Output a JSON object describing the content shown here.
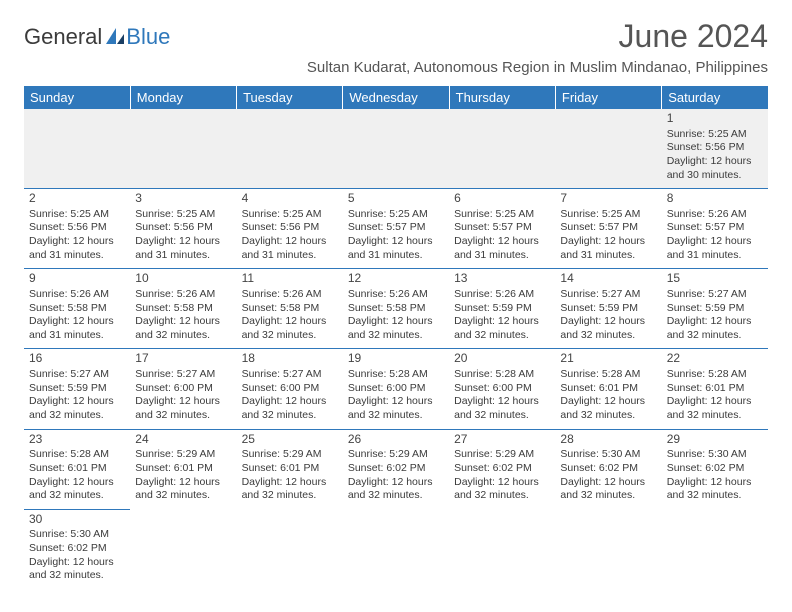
{
  "logo": {
    "text1": "General",
    "text2": "Blue"
  },
  "title": "June 2024",
  "location": "Sultan Kudarat, Autonomous Region in Muslim Mindanao, Philippines",
  "columns": [
    "Sunday",
    "Monday",
    "Tuesday",
    "Wednesday",
    "Thursday",
    "Friday",
    "Saturday"
  ],
  "colors": {
    "header_bg": "#2f78bb",
    "header_text": "#ffffff",
    "cell_border": "#2f78bb",
    "body_text": "#3b3b3b",
    "gray_bg": "#f0f0f0"
  },
  "typography": {
    "title_fontsize": 32,
    "location_fontsize": 15,
    "header_fontsize": 13,
    "cell_fontsize": 10.5,
    "daynum_fontsize": 12
  },
  "weeks": [
    [
      null,
      null,
      null,
      null,
      null,
      null,
      {
        "d": "1",
        "sr": "Sunrise: 5:25 AM",
        "ss": "Sunset: 5:56 PM",
        "dl1": "Daylight: 12 hours",
        "dl2": "and 30 minutes."
      }
    ],
    [
      {
        "d": "2",
        "sr": "Sunrise: 5:25 AM",
        "ss": "Sunset: 5:56 PM",
        "dl1": "Daylight: 12 hours",
        "dl2": "and 31 minutes."
      },
      {
        "d": "3",
        "sr": "Sunrise: 5:25 AM",
        "ss": "Sunset: 5:56 PM",
        "dl1": "Daylight: 12 hours",
        "dl2": "and 31 minutes."
      },
      {
        "d": "4",
        "sr": "Sunrise: 5:25 AM",
        "ss": "Sunset: 5:56 PM",
        "dl1": "Daylight: 12 hours",
        "dl2": "and 31 minutes."
      },
      {
        "d": "5",
        "sr": "Sunrise: 5:25 AM",
        "ss": "Sunset: 5:57 PM",
        "dl1": "Daylight: 12 hours",
        "dl2": "and 31 minutes."
      },
      {
        "d": "6",
        "sr": "Sunrise: 5:25 AM",
        "ss": "Sunset: 5:57 PM",
        "dl1": "Daylight: 12 hours",
        "dl2": "and 31 minutes."
      },
      {
        "d": "7",
        "sr": "Sunrise: 5:25 AM",
        "ss": "Sunset: 5:57 PM",
        "dl1": "Daylight: 12 hours",
        "dl2": "and 31 minutes."
      },
      {
        "d": "8",
        "sr": "Sunrise: 5:26 AM",
        "ss": "Sunset: 5:57 PM",
        "dl1": "Daylight: 12 hours",
        "dl2": "and 31 minutes."
      }
    ],
    [
      {
        "d": "9",
        "sr": "Sunrise: 5:26 AM",
        "ss": "Sunset: 5:58 PM",
        "dl1": "Daylight: 12 hours",
        "dl2": "and 31 minutes."
      },
      {
        "d": "10",
        "sr": "Sunrise: 5:26 AM",
        "ss": "Sunset: 5:58 PM",
        "dl1": "Daylight: 12 hours",
        "dl2": "and 32 minutes."
      },
      {
        "d": "11",
        "sr": "Sunrise: 5:26 AM",
        "ss": "Sunset: 5:58 PM",
        "dl1": "Daylight: 12 hours",
        "dl2": "and 32 minutes."
      },
      {
        "d": "12",
        "sr": "Sunrise: 5:26 AM",
        "ss": "Sunset: 5:58 PM",
        "dl1": "Daylight: 12 hours",
        "dl2": "and 32 minutes."
      },
      {
        "d": "13",
        "sr": "Sunrise: 5:26 AM",
        "ss": "Sunset: 5:59 PM",
        "dl1": "Daylight: 12 hours",
        "dl2": "and 32 minutes."
      },
      {
        "d": "14",
        "sr": "Sunrise: 5:27 AM",
        "ss": "Sunset: 5:59 PM",
        "dl1": "Daylight: 12 hours",
        "dl2": "and 32 minutes."
      },
      {
        "d": "15",
        "sr": "Sunrise: 5:27 AM",
        "ss": "Sunset: 5:59 PM",
        "dl1": "Daylight: 12 hours",
        "dl2": "and 32 minutes."
      }
    ],
    [
      {
        "d": "16",
        "sr": "Sunrise: 5:27 AM",
        "ss": "Sunset: 5:59 PM",
        "dl1": "Daylight: 12 hours",
        "dl2": "and 32 minutes."
      },
      {
        "d": "17",
        "sr": "Sunrise: 5:27 AM",
        "ss": "Sunset: 6:00 PM",
        "dl1": "Daylight: 12 hours",
        "dl2": "and 32 minutes."
      },
      {
        "d": "18",
        "sr": "Sunrise: 5:27 AM",
        "ss": "Sunset: 6:00 PM",
        "dl1": "Daylight: 12 hours",
        "dl2": "and 32 minutes."
      },
      {
        "d": "19",
        "sr": "Sunrise: 5:28 AM",
        "ss": "Sunset: 6:00 PM",
        "dl1": "Daylight: 12 hours",
        "dl2": "and 32 minutes."
      },
      {
        "d": "20",
        "sr": "Sunrise: 5:28 AM",
        "ss": "Sunset: 6:00 PM",
        "dl1": "Daylight: 12 hours",
        "dl2": "and 32 minutes."
      },
      {
        "d": "21",
        "sr": "Sunrise: 5:28 AM",
        "ss": "Sunset: 6:01 PM",
        "dl1": "Daylight: 12 hours",
        "dl2": "and 32 minutes."
      },
      {
        "d": "22",
        "sr": "Sunrise: 5:28 AM",
        "ss": "Sunset: 6:01 PM",
        "dl1": "Daylight: 12 hours",
        "dl2": "and 32 minutes."
      }
    ],
    [
      {
        "d": "23",
        "sr": "Sunrise: 5:28 AM",
        "ss": "Sunset: 6:01 PM",
        "dl1": "Daylight: 12 hours",
        "dl2": "and 32 minutes."
      },
      {
        "d": "24",
        "sr": "Sunrise: 5:29 AM",
        "ss": "Sunset: 6:01 PM",
        "dl1": "Daylight: 12 hours",
        "dl2": "and 32 minutes."
      },
      {
        "d": "25",
        "sr": "Sunrise: 5:29 AM",
        "ss": "Sunset: 6:01 PM",
        "dl1": "Daylight: 12 hours",
        "dl2": "and 32 minutes."
      },
      {
        "d": "26",
        "sr": "Sunrise: 5:29 AM",
        "ss": "Sunset: 6:02 PM",
        "dl1": "Daylight: 12 hours",
        "dl2": "and 32 minutes."
      },
      {
        "d": "27",
        "sr": "Sunrise: 5:29 AM",
        "ss": "Sunset: 6:02 PM",
        "dl1": "Daylight: 12 hours",
        "dl2": "and 32 minutes."
      },
      {
        "d": "28",
        "sr": "Sunrise: 5:30 AM",
        "ss": "Sunset: 6:02 PM",
        "dl1": "Daylight: 12 hours",
        "dl2": "and 32 minutes."
      },
      {
        "d": "29",
        "sr": "Sunrise: 5:30 AM",
        "ss": "Sunset: 6:02 PM",
        "dl1": "Daylight: 12 hours",
        "dl2": "and 32 minutes."
      }
    ],
    [
      {
        "d": "30",
        "sr": "Sunrise: 5:30 AM",
        "ss": "Sunset: 6:02 PM",
        "dl1": "Daylight: 12 hours",
        "dl2": "and 32 minutes."
      },
      null,
      null,
      null,
      null,
      null,
      null
    ]
  ]
}
